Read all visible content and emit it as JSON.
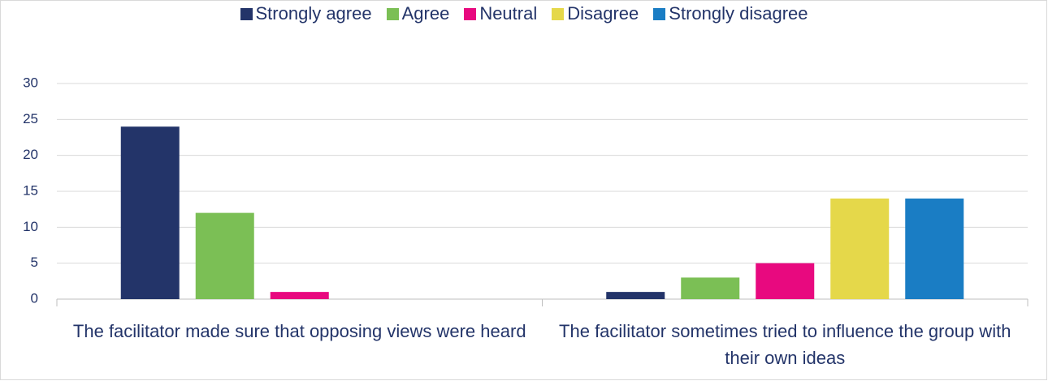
{
  "chart_data": {
    "type": "bar",
    "categories": [
      "The facilitator made sure that opposing views were heard",
      "The facilitator sometimes tried to influence the group with their own ideas"
    ],
    "series": [
      {
        "name": "Strongly agree",
        "color": "#233469",
        "values": [
          24,
          1
        ]
      },
      {
        "name": "Agree",
        "color": "#7bbf55",
        "values": [
          12,
          3
        ]
      },
      {
        "name": "Neutral",
        "color": "#e8097f",
        "values": [
          1,
          5
        ]
      },
      {
        "name": "Disagree",
        "color": "#e5d84a",
        "values": [
          0,
          14
        ]
      },
      {
        "name": "Strongly disagree",
        "color": "#1a7dc4",
        "values": [
          0,
          14
        ]
      }
    ],
    "ylim": [
      0,
      30
    ],
    "yticks": [
      0,
      5,
      10,
      15,
      20,
      25,
      30
    ],
    "grid": true,
    "legend": "top"
  }
}
